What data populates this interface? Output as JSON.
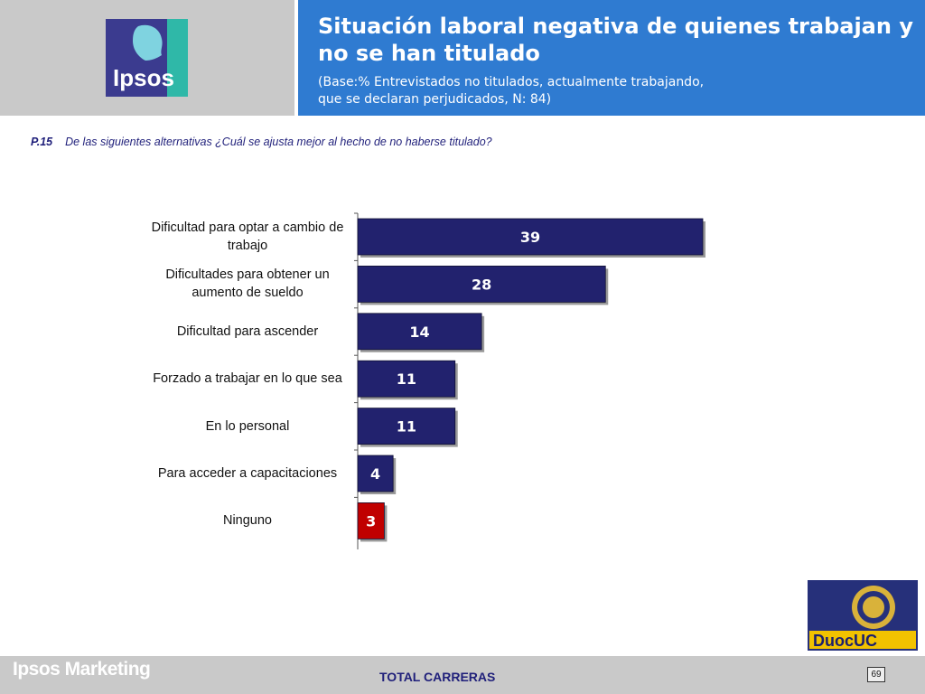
{
  "header": {
    "title": "Situación laboral negativa de quienes trabajan y no se han titulado",
    "subtitle_line1": "(Base:% Entrevistados no titulados, actualmente trabajando,",
    "subtitle_line2": "que se declaran perjudicados, N: 84)",
    "logo_text": "Ipsos"
  },
  "question": {
    "number": "P.15",
    "text": "De las siguientes alternativas ¿Cuál se ajusta mejor al hecho de no haberse titulado?"
  },
  "chart_data": {
    "type": "bar",
    "orientation": "horizontal",
    "categories": [
      "Dificultad para optar a cambio de trabajo",
      "Dificultades para obtener un aumento de sueldo",
      "Dificultad para ascender",
      "Forzado a trabajar en lo que sea",
      "En lo personal",
      "Para acceder a capacitaciones",
      "Ninguno"
    ],
    "values": [
      39,
      28,
      14,
      11,
      11,
      4,
      3
    ],
    "colors": [
      "#22226e",
      "#22226e",
      "#22226e",
      "#22226e",
      "#22226e",
      "#22226e",
      "#c00000"
    ],
    "xlim": [
      0,
      39
    ],
    "grid": false,
    "legend": "none"
  },
  "footer": {
    "brand": "Ipsos Marketing",
    "center": "TOTAL CARRERAS",
    "page": "69",
    "partner_logo_text": "DuocUC"
  }
}
